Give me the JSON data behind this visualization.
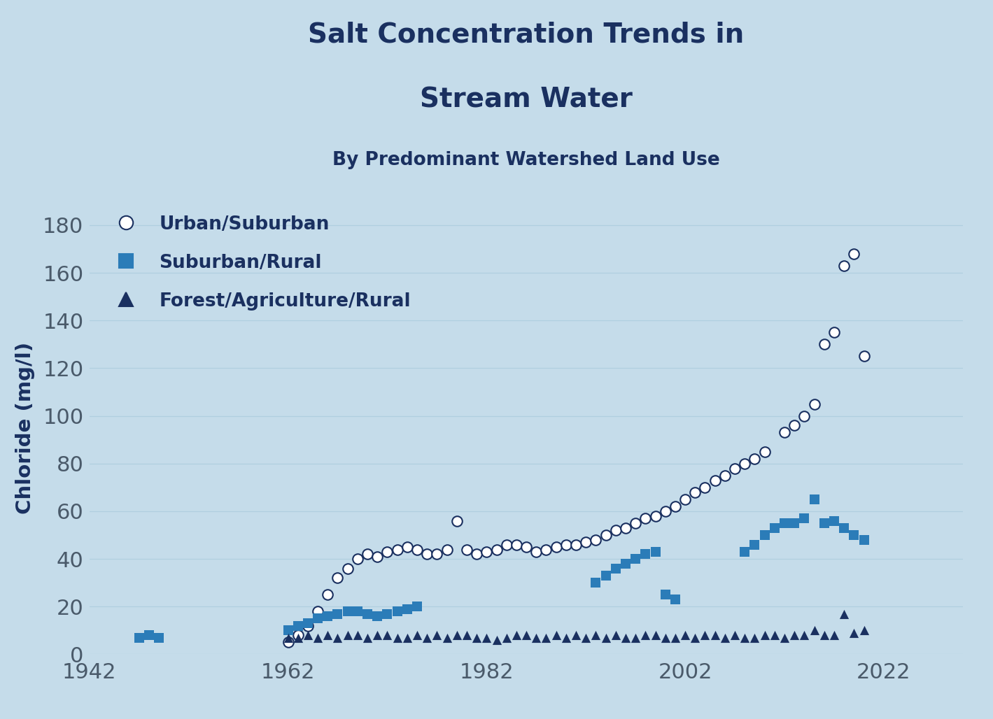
{
  "title_line1": "Salt Concentration Trends in",
  "title_line2": "Stream Water",
  "subtitle": "By Predominant Watershed Land Use",
  "ylabel": "Chloride (mg/l)",
  "xlim": [
    1942,
    2030
  ],
  "ylim": [
    0,
    190
  ],
  "xticks": [
    1942,
    1962,
    1982,
    2002,
    2022
  ],
  "yticks": [
    0,
    20,
    40,
    60,
    80,
    100,
    120,
    140,
    160,
    180
  ],
  "background_color": "#c5dcea",
  "title_color": "#1a3060",
  "axis_label_color": "#1a3060",
  "tick_color": "#4a5a6a",
  "grid_color": "#b0cfe0",
  "urban_color": "white",
  "urban_edge_color": "#1a3060",
  "suburban_color": "#2b7cb8",
  "forest_color": "#1a3060",
  "urban_x": [
    1962,
    1963,
    1964,
    1965,
    1966,
    1967,
    1968,
    1969,
    1970,
    1971,
    1972,
    1973,
    1974,
    1975,
    1976,
    1977,
    1978,
    1979,
    1980,
    1981,
    1982,
    1983,
    1984,
    1985,
    1986,
    1987,
    1988,
    1989,
    1990,
    1991,
    1992,
    1993,
    1994,
    1995,
    1996,
    1997,
    1998,
    1999,
    2000,
    2001,
    2002,
    2003,
    2004,
    2005,
    2006,
    2007,
    2008,
    2009,
    2010,
    2012,
    2013,
    2014,
    2015,
    2016,
    2017,
    2018,
    2019,
    2020
  ],
  "urban_y": [
    5,
    8,
    12,
    18,
    25,
    32,
    36,
    40,
    42,
    41,
    43,
    44,
    45,
    44,
    42,
    42,
    44,
    56,
    44,
    42,
    43,
    44,
    46,
    46,
    45,
    43,
    44,
    45,
    46,
    46,
    47,
    48,
    50,
    52,
    53,
    55,
    57,
    58,
    60,
    62,
    65,
    68,
    70,
    73,
    75,
    78,
    80,
    82,
    85,
    93,
    96,
    100,
    105,
    130,
    135,
    163,
    168,
    125
  ],
  "suburban_x": [
    1947,
    1948,
    1949,
    1962,
    1963,
    1964,
    1965,
    1966,
    1967,
    1968,
    1969,
    1970,
    1971,
    1972,
    1973,
    1974,
    1975,
    1993,
    1994,
    1995,
    1996,
    1997,
    1998,
    1999,
    2000,
    2001,
    2008,
    2009,
    2010,
    2011,
    2012,
    2013,
    2014,
    2015,
    2016,
    2017,
    2018,
    2019,
    2020
  ],
  "suburban_y": [
    7,
    8,
    7,
    10,
    12,
    13,
    15,
    16,
    17,
    18,
    18,
    17,
    16,
    17,
    18,
    19,
    20,
    30,
    33,
    36,
    38,
    40,
    42,
    43,
    25,
    23,
    43,
    46,
    50,
    53,
    55,
    55,
    57,
    65,
    55,
    56,
    53,
    50,
    48
  ],
  "forest_x": [
    1962,
    1963,
    1964,
    1965,
    1966,
    1967,
    1968,
    1969,
    1970,
    1971,
    1972,
    1973,
    1974,
    1975,
    1976,
    1977,
    1978,
    1979,
    1980,
    1981,
    1982,
    1983,
    1984,
    1985,
    1986,
    1987,
    1988,
    1989,
    1990,
    1991,
    1992,
    1993,
    1994,
    1995,
    1996,
    1997,
    1998,
    1999,
    2000,
    2001,
    2002,
    2003,
    2004,
    2005,
    2006,
    2007,
    2008,
    2009,
    2010,
    2011,
    2012,
    2013,
    2014,
    2015,
    2016,
    2017,
    2018,
    2019,
    2020
  ],
  "forest_y": [
    7,
    7,
    8,
    7,
    8,
    7,
    8,
    8,
    7,
    8,
    8,
    7,
    7,
    8,
    7,
    8,
    7,
    8,
    8,
    7,
    7,
    6,
    7,
    8,
    8,
    7,
    7,
    8,
    7,
    8,
    7,
    8,
    7,
    8,
    7,
    7,
    8,
    8,
    7,
    7,
    8,
    7,
    8,
    8,
    7,
    8,
    7,
    7,
    8,
    8,
    7,
    8,
    8,
    10,
    8,
    8,
    17,
    9,
    10
  ],
  "legend_items": [
    {
      "label": "Urban/Suburban",
      "marker": "o",
      "fc": "white",
      "ec": "#1a3060"
    },
    {
      "label": "Suburban/Rural",
      "marker": "s",
      "fc": "#2b7cb8",
      "ec": "#2b7cb8"
    },
    {
      "label": "Forest/Agriculture/Rural",
      "marker": "^",
      "fc": "#1a3060",
      "ec": "#1a3060"
    }
  ]
}
